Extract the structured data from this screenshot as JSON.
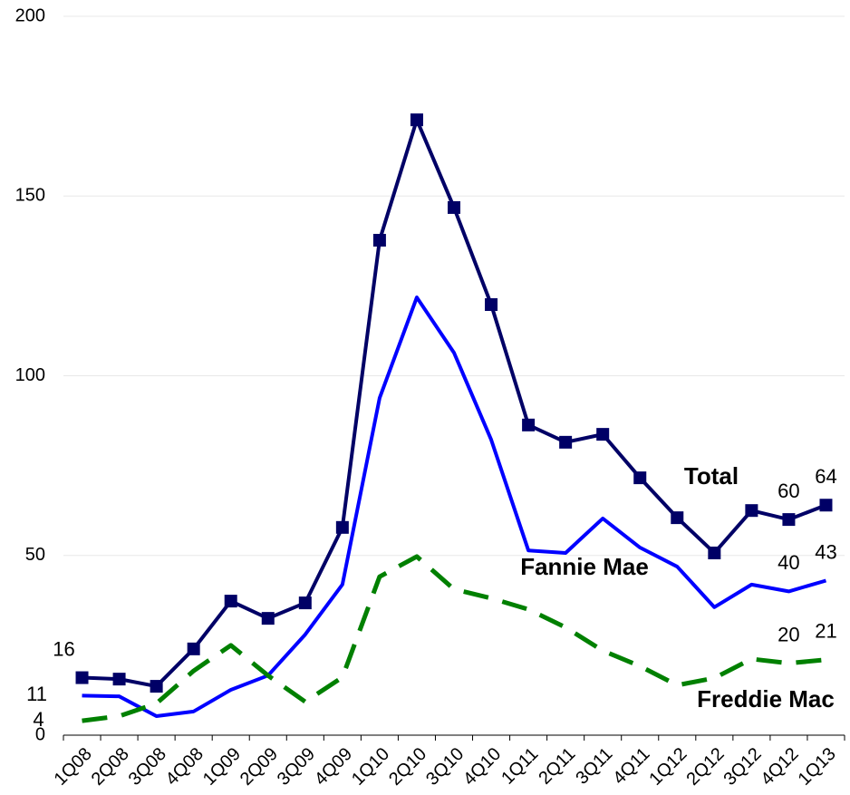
{
  "chart_data": {
    "type": "line",
    "categories": [
      "1Q08",
      "2Q08",
      "3Q08",
      "4Q08",
      "1Q09",
      "2Q09",
      "3Q09",
      "4Q09",
      "1Q10",
      "2Q10",
      "3Q10",
      "4Q10",
      "1Q11",
      "2Q11",
      "3Q11",
      "4Q11",
      "1Q12",
      "2Q12",
      "3Q12",
      "4Q12",
      "1Q13"
    ],
    "series": [
      {
        "name": "Total",
        "color": "#000066",
        "marker": "square",
        "dash": false,
        "values": [
          16,
          15.6,
          13.6,
          24,
          37.3,
          32.5,
          36.8,
          57.8,
          137.7,
          171.2,
          146.8,
          119.8,
          86.3,
          81.5,
          83.7,
          71.6,
          60.5,
          50.7,
          62.5,
          60,
          64
        ]
      },
      {
        "name": "Fannie Mae",
        "color": "#0000ff",
        "marker": "none",
        "dash": false,
        "values": [
          11,
          10.8,
          5.3,
          6.6,
          12.6,
          16.6,
          28,
          41.9,
          93.8,
          121.8,
          106.4,
          82.2,
          51.4,
          50.7,
          60.3,
          52.2,
          46.9,
          35.6,
          41.9,
          40,
          43
        ]
      },
      {
        "name": "Freddie Mac",
        "color": "#008000",
        "marker": "none",
        "dash": true,
        "values": [
          4,
          5.3,
          8.8,
          17.9,
          25,
          16.6,
          9.3,
          16.1,
          44.1,
          49.7,
          40.6,
          38.1,
          35,
          30,
          23.5,
          19.2,
          13.9,
          15.9,
          21.2,
          20,
          21
        ]
      }
    ],
    "labeled_indices": [
      0,
      19,
      20
    ],
    "ylim": [
      0,
      200
    ],
    "yticks": [
      0,
      50,
      100,
      150,
      200
    ],
    "grid": true
  }
}
